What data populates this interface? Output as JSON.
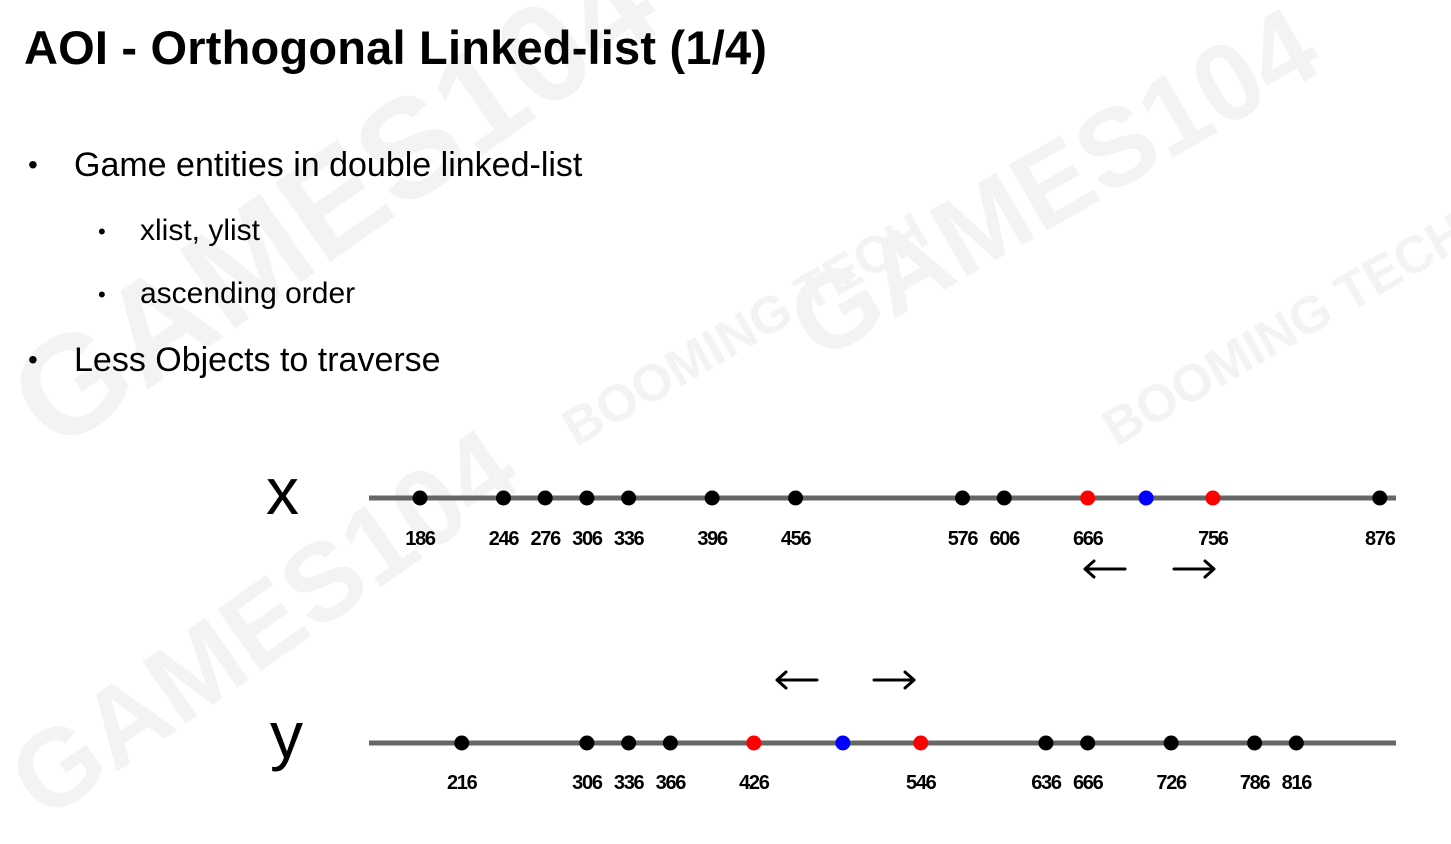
{
  "slide": {
    "title": "AOI - Orthogonal Linked-list (1/4)",
    "bullets": [
      {
        "text": "Game entities in double linked-list",
        "level": 1
      },
      {
        "text": "xlist, ylist",
        "level": 2
      },
      {
        "text": "ascending order",
        "level": 2
      },
      {
        "text": "Less Objects to traverse",
        "level": 1
      }
    ],
    "watermark": {
      "brand": "GAMES104",
      "logo": "BOOMING TECH"
    }
  },
  "diagram": {
    "colors": {
      "line": "#666666",
      "node": "#000000",
      "range_node": "#ff0000",
      "center_node": "#0000ff"
    },
    "x_list": {
      "axis_label": "x",
      "nodes": [
        {
          "value": 186,
          "label": "186",
          "kind": "entity"
        },
        {
          "value": 246,
          "label": "246",
          "kind": "entity"
        },
        {
          "value": 276,
          "label": "276",
          "kind": "entity"
        },
        {
          "value": 306,
          "label": "306",
          "kind": "entity"
        },
        {
          "value": 336,
          "label": "336",
          "kind": "entity"
        },
        {
          "value": 396,
          "label": "396",
          "kind": "entity"
        },
        {
          "value": 456,
          "label": "456",
          "kind": "entity"
        },
        {
          "value": 576,
          "label": "576",
          "kind": "entity"
        },
        {
          "value": 606,
          "label": "606",
          "kind": "entity"
        },
        {
          "value": 666,
          "label": "666",
          "kind": "range"
        },
        {
          "value": 708,
          "label": "",
          "kind": "center"
        },
        {
          "value": 756,
          "label": "756",
          "kind": "range"
        },
        {
          "value": 876,
          "label": "876",
          "kind": "entity"
        }
      ],
      "arrows": [
        {
          "direction": "left",
          "glyph": "←"
        },
        {
          "direction": "right",
          "glyph": "→"
        }
      ]
    },
    "y_list": {
      "axis_label": "y",
      "nodes": [
        {
          "value": 216,
          "label": "216",
          "kind": "entity"
        },
        {
          "value": 306,
          "label": "306",
          "kind": "entity"
        },
        {
          "value": 336,
          "label": "336",
          "kind": "entity"
        },
        {
          "value": 366,
          "label": "366",
          "kind": "entity"
        },
        {
          "value": 426,
          "label": "426",
          "kind": "range"
        },
        {
          "value": 490,
          "label": "",
          "kind": "center"
        },
        {
          "value": 546,
          "label": "546",
          "kind": "range"
        },
        {
          "value": 636,
          "label": "636",
          "kind": "entity"
        },
        {
          "value": 666,
          "label": "666",
          "kind": "entity"
        },
        {
          "value": 726,
          "label": "726",
          "kind": "entity"
        },
        {
          "value": 786,
          "label": "786",
          "kind": "entity"
        },
        {
          "value": 816,
          "label": "816",
          "kind": "entity"
        }
      ],
      "arrows": [
        {
          "direction": "left",
          "glyph": "←"
        },
        {
          "direction": "right",
          "glyph": "→"
        }
      ]
    }
  }
}
